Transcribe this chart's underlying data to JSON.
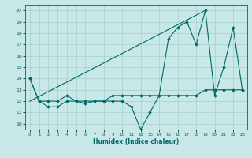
{
  "title": "",
  "xlabel": "Humidex (Indice chaleur)",
  "ylabel": "",
  "background_color": "#c8e8e8",
  "grid_color": "#a8cece",
  "line_color": "#006868",
  "xlim": [
    -0.5,
    23.5
  ],
  "ylim": [
    9.5,
    20.5
  ],
  "yticks": [
    10,
    11,
    12,
    13,
    14,
    15,
    16,
    17,
    18,
    19,
    20
  ],
  "xticks": [
    0,
    1,
    2,
    3,
    4,
    5,
    6,
    7,
    8,
    9,
    10,
    11,
    12,
    13,
    14,
    15,
    16,
    17,
    18,
    19,
    20,
    21,
    22,
    23
  ],
  "line1_x": [
    0,
    1,
    2,
    3,
    4,
    5,
    6,
    7,
    8,
    9,
    10,
    11,
    12,
    13,
    14,
    15,
    16,
    17,
    18,
    19,
    20,
    21,
    22,
    23
  ],
  "line1_y": [
    14,
    12,
    12,
    12,
    12.5,
    12,
    12,
    12,
    12,
    12,
    12,
    11.5,
    9.5,
    11,
    12.5,
    17.5,
    18.5,
    19,
    17,
    20,
    12.5,
    15,
    18.5,
    13
  ],
  "line2_x": [
    0,
    1,
    2,
    3,
    4,
    5,
    6,
    7,
    8,
    9,
    10,
    11,
    12,
    13,
    14,
    15,
    16,
    17,
    18,
    19,
    20,
    21,
    22,
    23
  ],
  "line2_y": [
    14,
    12,
    11.5,
    11.5,
    12,
    12,
    11.8,
    12,
    12,
    12.5,
    12.5,
    12.5,
    12.5,
    12.5,
    12.5,
    12.5,
    12.5,
    12.5,
    12.5,
    13,
    13,
    13,
    13,
    13
  ],
  "line3_x": [
    0,
    19
  ],
  "line3_y": [
    12,
    20
  ]
}
